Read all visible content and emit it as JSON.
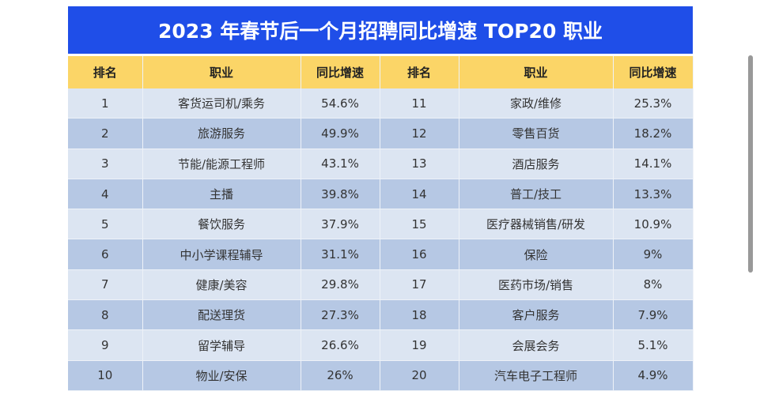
{
  "title": "2023 年春节后一个月招聘同比增速 TOP20 职业",
  "headers": [
    "排名",
    "职业",
    "同比增速",
    "排名",
    "职业",
    "同比增速"
  ],
  "rows": [
    [
      "1",
      "客货运司机/乘务",
      "54.6%",
      "11",
      "家政/维修",
      "25.3%"
    ],
    [
      "2",
      "旅游服务",
      "49.9%",
      "12",
      "零售百货",
      "18.2%"
    ],
    [
      "3",
      "节能/能源工程师",
      "43.1%",
      "13",
      "酒店服务",
      "14.1%"
    ],
    [
      "4",
      "主播",
      "39.8%",
      "14",
      "普工/技工",
      "13.3%"
    ],
    [
      "5",
      "餐饮服务",
      "37.9%",
      "15",
      "医疗器械销售/研发",
      "10.9%"
    ],
    [
      "6",
      "中小学课程辅导",
      "31.1%",
      "16",
      "保险",
      "9%"
    ],
    [
      "7",
      "健康/美容",
      "29.8%",
      "17",
      "医药市场/销售",
      "8%"
    ],
    [
      "8",
      "配送理货",
      "27.3%",
      "18",
      "客户服务",
      "7.9%"
    ],
    [
      "9",
      "留学辅导",
      "26.6%",
      "19",
      "会展会务",
      "5.1%"
    ],
    [
      "10",
      "物业/安保",
      "26%",
      "20",
      "汽车电子工程师",
      "4.9%"
    ]
  ],
  "colors": {
    "title_bg": "#1f4ee8",
    "header_bg": "#fbd567",
    "row_light": "#dce5f2",
    "row_dark": "#b6c8e4"
  }
}
